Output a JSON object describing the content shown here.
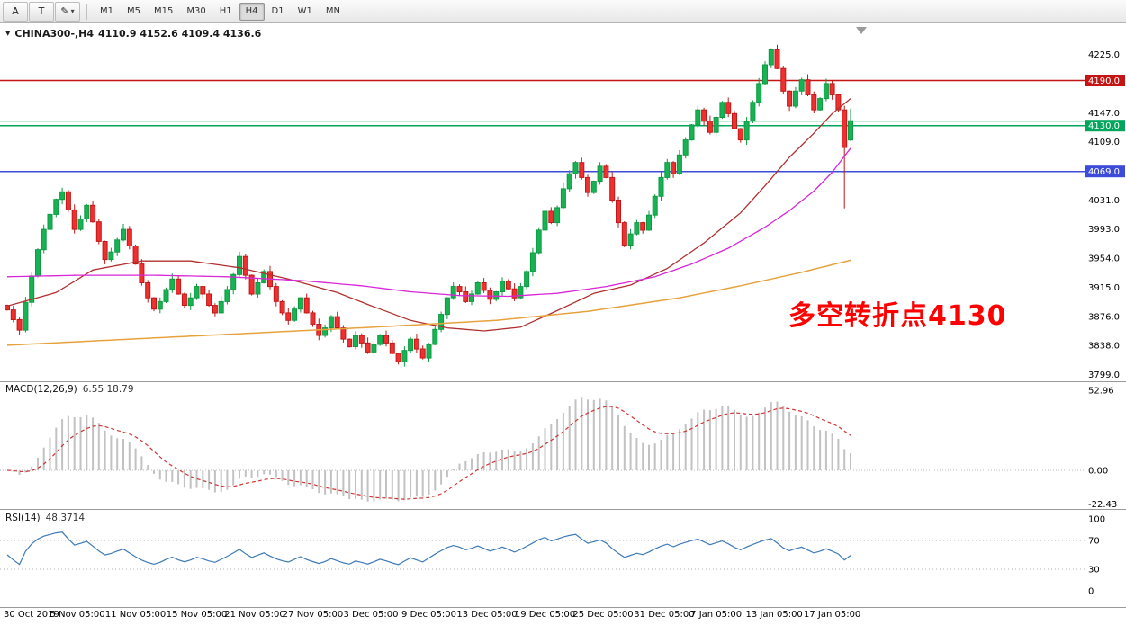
{
  "toolbar": {
    "tools": [
      {
        "name": "pointer-tool",
        "label": "A"
      },
      {
        "name": "text-tool",
        "label": "T"
      },
      {
        "name": "draw-tools-dropdown",
        "label": "✎",
        "caret": "▾"
      }
    ],
    "timeframes": [
      {
        "label": "M1",
        "active": false
      },
      {
        "label": "M5",
        "active": false
      },
      {
        "label": "M15",
        "active": false
      },
      {
        "label": "M30",
        "active": false
      },
      {
        "label": "H1",
        "active": false
      },
      {
        "label": "H4",
        "active": true
      },
      {
        "label": "D1",
        "active": false
      },
      {
        "label": "W1",
        "active": false
      },
      {
        "label": "MN",
        "active": false
      }
    ]
  },
  "chart": {
    "title_icon": "▼",
    "symbol": "CHINA300-,H4",
    "ohlc_text": "4110.9 4152.6 4109.4 4136.6",
    "annotation": {
      "text": "多空转折点4130",
      "color": "#fe0000"
    },
    "hlines": [
      {
        "p": 4190,
        "color": "#c41414",
        "w": 1.5
      },
      {
        "p": 4136,
        "color": "#00c060",
        "w": 1.2
      },
      {
        "p": 4130,
        "color": "#00a65c",
        "w": 1.5
      },
      {
        "p": 4069,
        "color": "#3c4bd8",
        "w": 1.5
      }
    ],
    "price_axis": {
      "ticks": [
        {
          "text": "4225.0",
          "p": 4225
        },
        {
          "text": "4147.0",
          "p": 4147
        },
        {
          "text": "4109.0",
          "p": 4109
        },
        {
          "text": "4031.0",
          "p": 4031
        },
        {
          "text": "3993.0",
          "p": 3993
        },
        {
          "text": "3954.0",
          "p": 3954
        },
        {
          "text": "3915.0",
          "p": 3915
        },
        {
          "text": "3876.0",
          "p": 3876
        },
        {
          "text": "3838.0",
          "p": 3838
        },
        {
          "text": "3799.0",
          "p": 3799
        }
      ],
      "badges": [
        {
          "text": "4190.0",
          "p": 4190,
          "bg": "#c41414"
        },
        {
          "text": "4130.0",
          "p": 4130,
          "bg": "#00a65c"
        },
        {
          "text": "4069.0",
          "p": 4069,
          "bg": "#3c4bd8"
        }
      ]
    },
    "time_axis": [
      {
        "label": "30 Oct 2019",
        "bar": 0
      },
      {
        "label": "5 Nov 05:00",
        "bar": 11.5
      },
      {
        "label": "11 Nov 05:00",
        "bar": 21
      },
      {
        "label": "15 Nov 05:00",
        "bar": 31
      },
      {
        "label": "21 Nov 05:00",
        "bar": 40.5
      },
      {
        "label": "27 Nov 05:00",
        "bar": 50
      },
      {
        "label": "3 Dec 05:00",
        "bar": 59.5
      },
      {
        "label": "9 Dec 05:00",
        "bar": 69
      },
      {
        "label": "13 Dec 05:00",
        "bar": 78.5
      },
      {
        "label": "19 Dec 05:00",
        "bar": 88
      },
      {
        "label": "25 Dec 05:00",
        "bar": 97.5
      },
      {
        "label": "31 Dec 05:00",
        "bar": 107.5
      },
      {
        "label": "7 Jan 05:00",
        "bar": 116
      },
      {
        "label": "13 Jan 05:00",
        "bar": 125.5
      },
      {
        "label": "17 Jan 05:00",
        "bar": 135
      }
    ]
  },
  "chart_data": {
    "type": "candlestick",
    "symbol": "CHINA300-",
    "timeframe": "H4",
    "title": "CHINA300-,H4 4110.9 4152.6 4109.4 4136.6",
    "price_range": [
      3790,
      4266
    ],
    "last_bar": {
      "open": 4110.9,
      "high": 4152.6,
      "low": 4109.4,
      "close": 4136.6
    },
    "closes": [
      3885,
      3872,
      3858,
      3895,
      3930,
      3965,
      3992,
      4012,
      4032,
      4042,
      4018,
      3992,
      4006,
      4024,
      4002,
      3976,
      3952,
      3962,
      3978,
      3992,
      3970,
      3946,
      3921,
      3901,
      3886,
      3896,
      3912,
      3926,
      3906,
      3891,
      3901,
      3916,
      3906,
      3891,
      3881,
      3896,
      3912,
      3932,
      3956,
      3931,
      3906,
      3921,
      3936,
      3916,
      3896,
      3881,
      3871,
      3886,
      3901,
      3881,
      3866,
      3851,
      3861,
      3876,
      3861,
      3846,
      3836,
      3851,
      3841,
      3829,
      3839,
      3851,
      3841,
      3827,
      3816,
      3831,
      3846,
      3833,
      3821,
      3839,
      3859,
      3879,
      3901,
      3916,
      3909,
      3896,
      3906,
      3921,
      3911,
      3899,
      3909,
      3923,
      3913,
      3901,
      3916,
      3936,
      3961,
      3991,
      4016,
      4001,
      4021,
      4046,
      4066,
      4081,
      4061,
      4041,
      4056,
      4076,
      4061,
      4031,
      4001,
      3971,
      3986,
      4001,
      3991,
      4011,
      4036,
      4061,
      4081,
      4066,
      4091,
      4111,
      4131,
      4151,
      4136,
      4121,
      4141,
      4161,
      4146,
      4126,
      4111,
      4136,
      4161,
      4186,
      4211,
      4231,
      4206,
      4176,
      4156,
      4176,
      4191,
      4171,
      4151,
      4166,
      4186,
      4171,
      4151,
      4101,
      4136.6
    ],
    "special_lows": {
      "137": 4020
    },
    "moving_averages": [
      {
        "name": "ma-fast-red",
        "color": "#b03030",
        "width": 1.3,
        "points": [
          [
            0,
            3890
          ],
          [
            8,
            3908
          ],
          [
            14,
            3938
          ],
          [
            22,
            3950
          ],
          [
            30,
            3950
          ],
          [
            38,
            3941
          ],
          [
            46,
            3926
          ],
          [
            54,
            3908
          ],
          [
            60,
            3889
          ],
          [
            66,
            3871
          ],
          [
            72,
            3861
          ],
          [
            78,
            3857
          ],
          [
            84,
            3862
          ],
          [
            90,
            3884
          ],
          [
            96,
            3907
          ],
          [
            102,
            3918
          ],
          [
            108,
            3940
          ],
          [
            114,
            3974
          ],
          [
            120,
            4014
          ],
          [
            124,
            4050
          ],
          [
            128,
            4088
          ],
          [
            132,
            4120
          ],
          [
            135,
            4146
          ],
          [
            138,
            4166
          ]
        ]
      },
      {
        "name": "ma-mid-magenta",
        "color": "#d926d9",
        "width": 1.3,
        "points": [
          [
            0,
            3929
          ],
          [
            12,
            3931
          ],
          [
            24,
            3931
          ],
          [
            36,
            3929
          ],
          [
            48,
            3924
          ],
          [
            58,
            3917
          ],
          [
            66,
            3909
          ],
          [
            74,
            3904
          ],
          [
            82,
            3903
          ],
          [
            90,
            3907
          ],
          [
            98,
            3916
          ],
          [
            106,
            3929
          ],
          [
            112,
            3946
          ],
          [
            118,
            3967
          ],
          [
            124,
            3995
          ],
          [
            128,
            4017
          ],
          [
            132,
            4043
          ],
          [
            135,
            4068
          ],
          [
            138,
            4100
          ]
        ]
      },
      {
        "name": "ma-slow-orange",
        "color": "#e6a23c",
        "width": 1.5,
        "points": [
          [
            0,
            3838
          ],
          [
            20,
            3846
          ],
          [
            40,
            3854
          ],
          [
            60,
            3862
          ],
          [
            80,
            3871
          ],
          [
            95,
            3883
          ],
          [
            110,
            3901
          ],
          [
            120,
            3917
          ],
          [
            130,
            3935
          ],
          [
            138,
            3951
          ]
        ]
      }
    ],
    "macd": {
      "label": "MACD(12,26,9)",
      "values_text": "6.55 18.79",
      "fast": 12,
      "slow": 26,
      "signal": 9,
      "hist_color": "#c2c2c2",
      "signal_color": "#cf3434",
      "axis": [
        {
          "text": "52.96",
          "v": 52.96
        },
        {
          "text": "0.00",
          "v": 0
        },
        {
          "text": "-22.43",
          "v": -22.43
        }
      ]
    },
    "rsi": {
      "label": "RSI(14)",
      "value_text": "48.3714",
      "period": 14,
      "color": "#3d7ab8",
      "levels": [
        70,
        30
      ],
      "axis": [
        {
          "text": "100",
          "v": 100
        },
        {
          "text": "70",
          "v": 70
        },
        {
          "text": "30",
          "v": 30
        },
        {
          "text": "0",
          "v": 0
        }
      ]
    }
  }
}
